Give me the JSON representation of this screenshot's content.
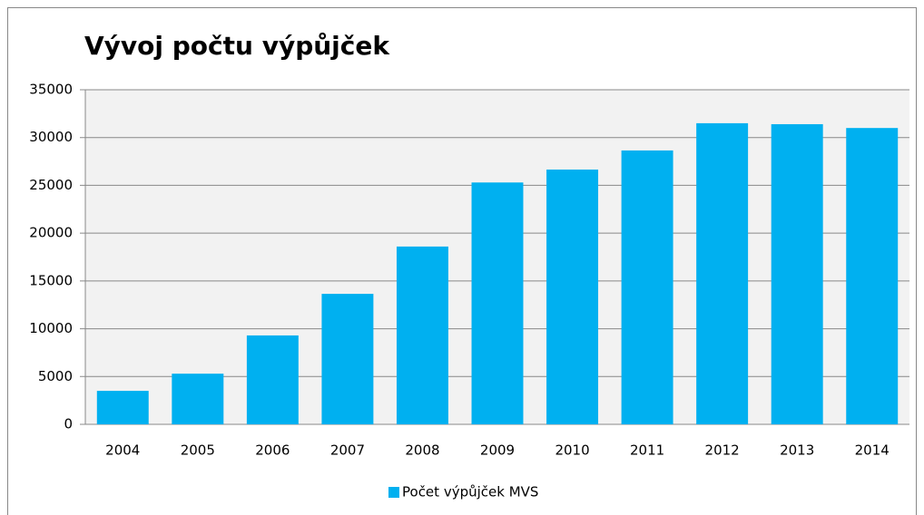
{
  "chart_data": {
    "type": "bar",
    "title": "Vývoj počtu výpůjček",
    "categories": [
      "2004",
      "2005",
      "2006",
      "2007",
      "2008",
      "2009",
      "2010",
      "2011",
      "2012",
      "2013",
      "2014"
    ],
    "series": [
      {
        "name": "Počet výpůjček MVS",
        "color": "#00b0f0",
        "values": [
          3500,
          5300,
          9300,
          13650,
          18600,
          25300,
          26650,
          28650,
          31500,
          31400,
          31000
        ]
      }
    ],
    "ylim": [
      0,
      35000
    ],
    "yticks": [
      0,
      5000,
      10000,
      15000,
      20000,
      25000,
      30000,
      35000
    ],
    "grid": true,
    "legend": "bottom"
  }
}
